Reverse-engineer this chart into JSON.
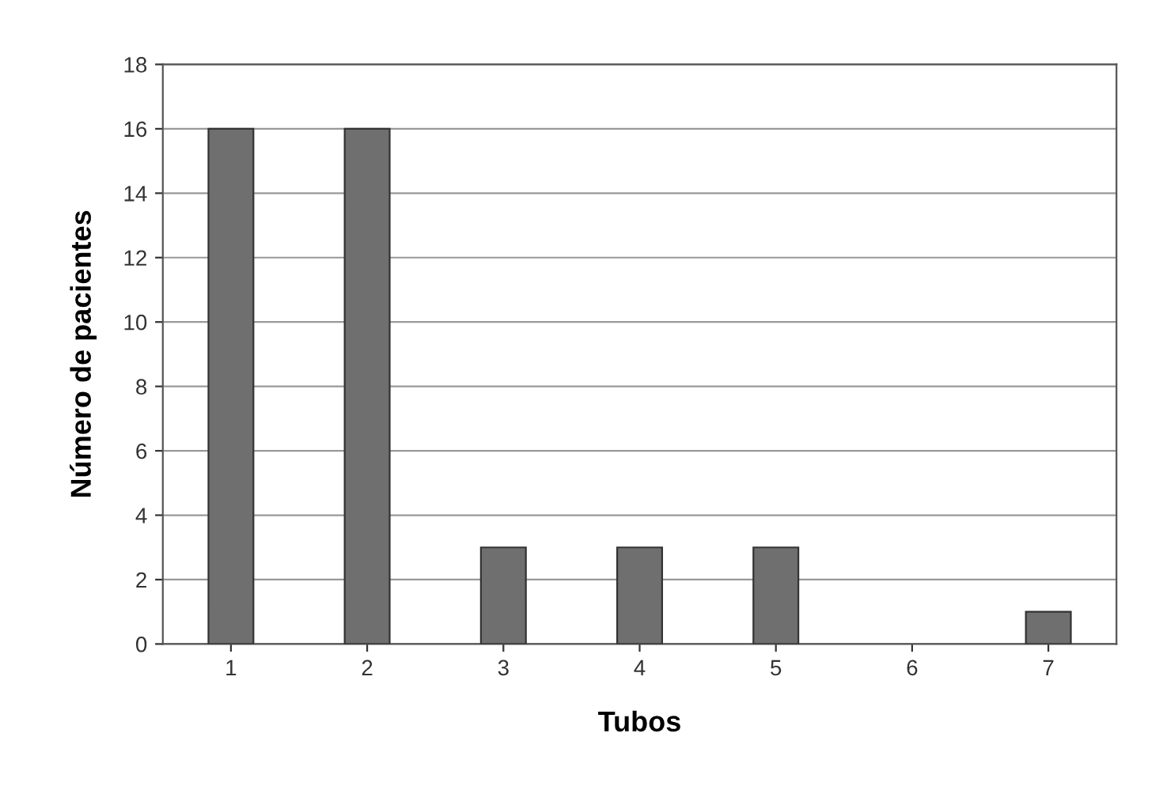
{
  "chart_data": {
    "type": "bar",
    "xlabel": "Tubos",
    "ylabel": "Número de pacientes",
    "categories": [
      "1",
      "2",
      "3",
      "4",
      "5",
      "6",
      "7"
    ],
    "values": [
      16,
      16,
      3,
      3,
      3,
      0,
      1
    ],
    "color": "#6f6f6f",
    "ylim": [
      0,
      18
    ],
    "yticks": [
      0,
      2,
      4,
      6,
      8,
      10,
      12,
      14,
      16,
      18
    ],
    "grid": "y"
  }
}
